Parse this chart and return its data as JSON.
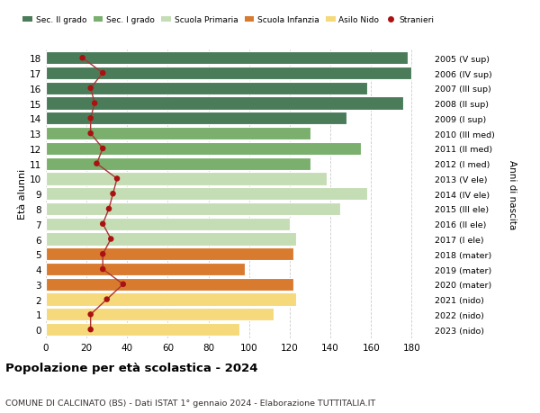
{
  "ages": [
    18,
    17,
    16,
    15,
    14,
    13,
    12,
    11,
    10,
    9,
    8,
    7,
    6,
    5,
    4,
    3,
    2,
    1,
    0
  ],
  "bar_values": [
    178,
    180,
    158,
    176,
    148,
    130,
    155,
    130,
    138,
    158,
    145,
    120,
    123,
    122,
    98,
    122,
    123,
    112,
    95
  ],
  "stranieri": [
    18,
    28,
    22,
    24,
    22,
    22,
    28,
    25,
    35,
    33,
    31,
    28,
    32,
    28,
    28,
    38,
    30,
    22,
    22
  ],
  "right_labels": [
    "2005 (V sup)",
    "2006 (IV sup)",
    "2007 (III sup)",
    "2008 (II sup)",
    "2009 (I sup)",
    "2010 (III med)",
    "2011 (II med)",
    "2012 (I med)",
    "2013 (V ele)",
    "2014 (IV ele)",
    "2015 (III ele)",
    "2016 (II ele)",
    "2017 (I ele)",
    "2018 (mater)",
    "2019 (mater)",
    "2020 (mater)",
    "2021 (nido)",
    "2022 (nido)",
    "2023 (nido)"
  ],
  "bar_colors": [
    "#4a7c59",
    "#4a7c59",
    "#4a7c59",
    "#4a7c59",
    "#4a7c59",
    "#7aaf6e",
    "#7aaf6e",
    "#7aaf6e",
    "#c5ddb5",
    "#c5ddb5",
    "#c5ddb5",
    "#c5ddb5",
    "#c5ddb5",
    "#d97b2f",
    "#d97b2f",
    "#d97b2f",
    "#f5d97a",
    "#f5d97a",
    "#f5d97a"
  ],
  "legend_labels": [
    "Sec. II grado",
    "Sec. I grado",
    "Scuola Primaria",
    "Scuola Infanzia",
    "Asilo Nido",
    "Stranieri"
  ],
  "legend_colors": [
    "#4a7c59",
    "#7aaf6e",
    "#c5ddb5",
    "#d97b2f",
    "#f5d97a",
    "#aa1111"
  ],
  "ylabel_left": "Età alunni",
  "ylabel_right": "Anni di nascita",
  "title": "Popolazione per età scolastica - 2024",
  "subtitle": "COMUNE DI CALCINATO (BS) - Dati ISTAT 1° gennaio 2024 - Elaborazione TUTTITALIA.IT",
  "xlim": [
    0,
    190
  ],
  "xticks": [
    0,
    20,
    40,
    60,
    80,
    100,
    120,
    140,
    160,
    180
  ],
  "bg_color": "#ffffff",
  "grid_color": "#cccccc",
  "stranieri_color": "#aa1111",
  "stranieri_line_color": "#aa3333"
}
